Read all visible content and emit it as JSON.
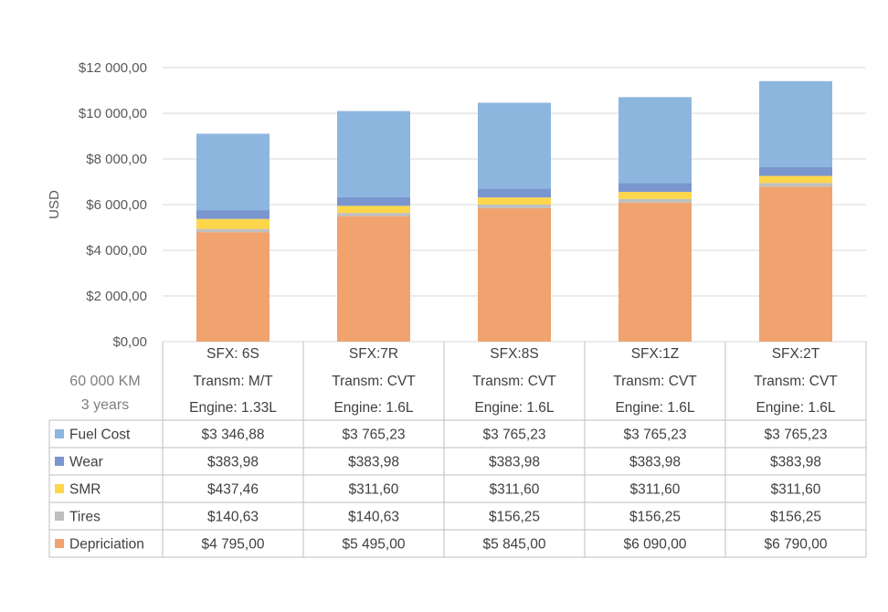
{
  "chart_data": {
    "type": "bar",
    "stacked": true,
    "ylabel": "USD",
    "ylim": [
      0,
      12000
    ],
    "yticks": [
      0,
      2000,
      4000,
      6000,
      8000,
      10000,
      12000
    ],
    "ytick_labels": [
      "$0,00",
      "$2 000,00",
      "$4 000,00",
      "$6 000,00",
      "$8 000,00",
      "$10 000,00",
      "$12 000,00"
    ],
    "categories": [
      {
        "sfx": "SFX: 6S",
        "transm": "Transm: M/T",
        "engine": "Engine: 1.33L"
      },
      {
        "sfx": "SFX:7R",
        "transm": "Transm: CVT",
        "engine": "Engine: 1.6L"
      },
      {
        "sfx": "SFX:8S",
        "transm": "Transm: CVT",
        "engine": "Engine: 1.6L"
      },
      {
        "sfx": "SFX:1Z",
        "transm": "Transm: CVT",
        "engine": "Engine: 1.6L"
      },
      {
        "sfx": "SFX:2T",
        "transm": "Transm: CVT",
        "engine": "Engine: 1.6L"
      }
    ],
    "corner_label": [
      "60 000 KM",
      "3 years"
    ],
    "series": [
      {
        "name": "Depriciation",
        "color": "#f0a36f",
        "values": [
          4795.0,
          5495.0,
          5845.0,
          6090.0,
          6790.0
        ],
        "labels": [
          "$4 795,00",
          "$5 495,00",
          "$5 845,00",
          "$6 090,00",
          "$6 790,00"
        ]
      },
      {
        "name": "Tires",
        "color": "#bfbfbf",
        "values": [
          140.63,
          140.63,
          156.25,
          156.25,
          156.25
        ],
        "labels": [
          "$140,63",
          "$140,63",
          "$156,25",
          "$156,25",
          "$156,25"
        ]
      },
      {
        "name": "SMR",
        "color": "#fdd64b",
        "values": [
          437.46,
          311.6,
          311.6,
          311.6,
          311.6
        ],
        "labels": [
          "$437,46",
          "$311,60",
          "$311,60",
          "$311,60",
          "$311,60"
        ]
      },
      {
        "name": "Wear",
        "color": "#7a96cf",
        "values": [
          383.98,
          383.98,
          383.98,
          383.98,
          383.98
        ],
        "labels": [
          "$383,98",
          "$383,98",
          "$383,98",
          "$383,98",
          "$383,98"
        ]
      },
      {
        "name": "Fuel Cost",
        "color": "#8db6df",
        "values": [
          3346.88,
          3765.23,
          3765.23,
          3765.23,
          3765.23
        ],
        "labels": [
          "$3 346,88",
          "$3 765,23",
          "$3 765,23",
          "$3 765,23",
          "$3 765,23"
        ]
      }
    ],
    "table_row_order": [
      "Fuel Cost",
      "Wear",
      "SMR",
      "Tires",
      "Depriciation"
    ]
  }
}
